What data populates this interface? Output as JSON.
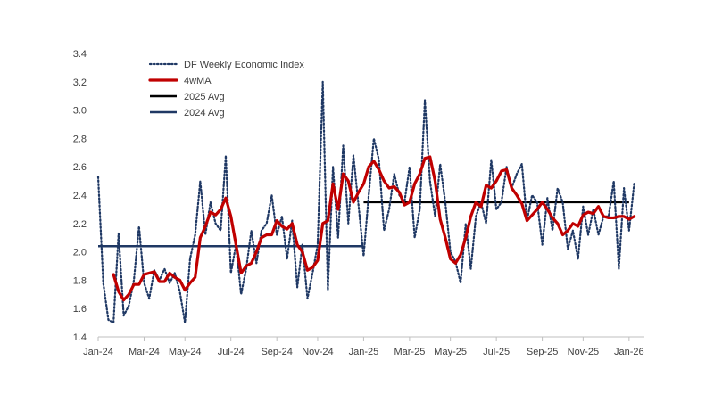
{
  "chart_data": {
    "type": "line",
    "title": "",
    "xlabel": "",
    "ylabel": "",
    "ylim": [
      1.4,
      3.4
    ],
    "yticks": [
      1.4,
      1.6,
      1.8,
      2.0,
      2.2,
      2.4,
      2.6,
      2.8,
      3.0,
      3.2,
      3.4
    ],
    "ytick_labels": [
      "1.4",
      "1.6",
      "1.8",
      "2.0",
      "2.2",
      "2.4",
      "2.6",
      "2.8",
      "3.0",
      "3.2",
      "3.4"
    ],
    "xlim_weeks": [
      0,
      107
    ],
    "xtick_weeks": [
      0,
      9,
      17,
      26,
      35,
      43,
      52,
      61,
      69,
      78,
      87,
      95,
      104
    ],
    "xtick_labels": [
      "Jan-24",
      "Mar-24",
      "May-24",
      "Jul-24",
      "Sep-24",
      "Nov-24",
      "Jan-25",
      "Mar-25",
      "May-25",
      "Jul-25",
      "Sep-25",
      "Nov-25",
      "Jan-26"
    ],
    "grid": false,
    "legend_position": "top-left",
    "series": [
      {
        "name": "DF Weekly Economic Index",
        "style": "dotted",
        "color": "#1F3864",
        "x_start_week": 0,
        "values": [
          2.53,
          1.78,
          1.52,
          1.5,
          2.13,
          1.55,
          1.62,
          1.8,
          2.18,
          1.78,
          1.67,
          1.87,
          1.8,
          1.88,
          1.78,
          1.85,
          1.72,
          1.5,
          1.95,
          2.12,
          2.5,
          2.12,
          2.35,
          2.2,
          2.15,
          2.68,
          1.85,
          2.05,
          1.7,
          1.88,
          2.15,
          1.92,
          2.15,
          2.2,
          2.4,
          2.12,
          2.25,
          1.95,
          2.22,
          1.75,
          2.05,
          1.67,
          1.85,
          2.05,
          3.2,
          1.73,
          2.6,
          2.1,
          2.75,
          2.2,
          2.68,
          2.33,
          1.97,
          2.4,
          2.8,
          2.65,
          2.15,
          2.3,
          2.55,
          2.4,
          2.35,
          2.6,
          2.1,
          2.3,
          3.07,
          2.5,
          2.25,
          2.62,
          2.35,
          2.0,
          1.93,
          1.78,
          2.2,
          1.88,
          2.25,
          2.35,
          2.2,
          2.65,
          2.3,
          2.35,
          2.6,
          2.45,
          2.55,
          2.62,
          2.22,
          2.4,
          2.35,
          2.05,
          2.38,
          2.15,
          2.45,
          2.35,
          2.02,
          2.15,
          1.95,
          2.32,
          2.12,
          2.3,
          2.12,
          2.25,
          2.25,
          2.5,
          1.88,
          2.45,
          2.15,
          2.48
        ]
      },
      {
        "name": "4wMA",
        "style": "solid",
        "color": "#C00000",
        "x_start_week": 3,
        "values": [
          1.84,
          1.72,
          1.66,
          1.7,
          1.77,
          1.77,
          1.84,
          1.85,
          1.86,
          1.79,
          1.79,
          1.85,
          1.82,
          1.8,
          1.73,
          1.78,
          1.82,
          2.1,
          2.18,
          2.28,
          2.26,
          2.3,
          2.38,
          2.25,
          2.05,
          1.85,
          1.9,
          1.92,
          2.0,
          2.1,
          2.12,
          2.12,
          2.22,
          2.18,
          2.16,
          2.2,
          2.05,
          2.0,
          1.87,
          1.89,
          1.94,
          2.2,
          2.22,
          2.48,
          2.3,
          2.55,
          2.5,
          2.35,
          2.42,
          2.48,
          2.6,
          2.64,
          2.58,
          2.5,
          2.45,
          2.46,
          2.42,
          2.33,
          2.35,
          2.48,
          2.55,
          2.66,
          2.67,
          2.5,
          2.23,
          2.1,
          1.95,
          1.92,
          1.98,
          2.1,
          2.25,
          2.35,
          2.32,
          2.47,
          2.45,
          2.5,
          2.57,
          2.58,
          2.45,
          2.4,
          2.34,
          2.22,
          2.26,
          2.3,
          2.35,
          2.3,
          2.24,
          2.2,
          2.12,
          2.15,
          2.2,
          2.18,
          2.26,
          2.28,
          2.27,
          2.32,
          2.25,
          2.24,
          2.24,
          2.25,
          2.25,
          2.23,
          2.25
        ]
      },
      {
        "name": "2025 Avg",
        "style": "solid",
        "color": "#000000",
        "x_from_week": 52,
        "x_to_week": 104,
        "value": 2.35
      },
      {
        "name": "2024 Avg",
        "style": "solid",
        "color": "#1F3864",
        "x_from_week": 0,
        "x_to_week": 52,
        "value": 2.04
      }
    ]
  }
}
